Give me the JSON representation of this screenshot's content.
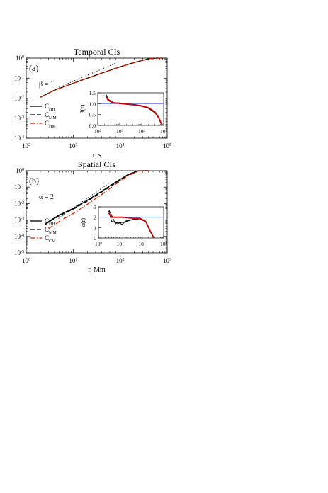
{
  "chart_data": [
    {
      "type": "line",
      "panel_label": "(a)",
      "title": "Temporal CIs",
      "xlabel": "τ, s",
      "ylabel": "",
      "x_scale": "log",
      "y_scale": "log",
      "xlim": [
        100,
        100000
      ],
      "ylim": [
        0.0001,
        1
      ],
      "x_ticks": [
        {
          "value": 100,
          "base": "10",
          "exp": "2"
        },
        {
          "value": 1000,
          "base": "10",
          "exp": "3"
        },
        {
          "value": 10000,
          "base": "10",
          "exp": "4"
        },
        {
          "value": 100000,
          "base": "10",
          "exp": "5"
        }
      ],
      "y_ticks": [
        {
          "value": 0.0001,
          "base": "10",
          "exp": "-4"
        },
        {
          "value": 0.001,
          "base": "10",
          "exp": "-3"
        },
        {
          "value": 0.01,
          "base": "10",
          "exp": "-2"
        },
        {
          "value": 0.1,
          "base": "10",
          "exp": "-1"
        },
        {
          "value": 1,
          "base": "10",
          "exp": "0"
        }
      ],
      "grid": false,
      "legend_position": "bottom-left",
      "reference_line": {
        "label": "β = 1",
        "slope": 1,
        "x": [
          400,
          8000
        ],
        "y": [
          0.028,
          0.56
        ]
      },
      "series": [
        {
          "name": "HH",
          "style": "solid",
          "color": "#000000",
          "x": [
            200,
            400,
            1000,
            2000,
            5000,
            10000,
            20000,
            40000,
            60000,
            80000
          ],
          "y": [
            0.011,
            0.025,
            0.055,
            0.1,
            0.21,
            0.37,
            0.6,
            0.92,
            1.0,
            1.0
          ]
        },
        {
          "name": "MM",
          "style": "dashed",
          "color": "#000000",
          "x": [
            200,
            400,
            1000,
            2000,
            5000,
            10000,
            20000,
            40000,
            60000,
            80000
          ],
          "y": [
            0.011,
            0.025,
            0.055,
            0.1,
            0.21,
            0.37,
            0.6,
            0.92,
            1.0,
            1.0
          ]
        },
        {
          "name": "HM",
          "style": "dashdot",
          "color": "#cc2200",
          "x": [
            200,
            400,
            1000,
            2000,
            5000,
            10000,
            20000,
            40000,
            60000,
            80000
          ],
          "y": [
            0.011,
            0.025,
            0.055,
            0.1,
            0.21,
            0.37,
            0.6,
            0.92,
            1.0,
            1.0
          ]
        }
      ],
      "inset": {
        "ylabel": "β(τ)",
        "x_scale": "log",
        "xlim": [
          100,
          100000
        ],
        "ylim": [
          0,
          1.5
        ],
        "x_ticks": [
          {
            "value": 100,
            "base": "10",
            "exp": "2"
          },
          {
            "value": 1000,
            "base": "10",
            "exp": "3"
          },
          {
            "value": 10000,
            "base": "10",
            "exp": "4"
          },
          {
            "value": 100000,
            "base": "10",
            "exp": "5"
          }
        ],
        "y_ticks": [
          "0.0",
          "0.5",
          "1.0",
          "1.5"
        ],
        "reference_value": 1.0,
        "reference_color": "#5577cc",
        "series": [
          {
            "name": "HH",
            "color": "#000000",
            "x": [
              250,
              300,
              500,
              1000,
              2000,
              5000,
              10000,
              20000,
              40000,
              60000,
              80000
            ],
            "y": [
              1.35,
              1.2,
              1.05,
              1.0,
              0.97,
              0.93,
              0.88,
              0.8,
              0.6,
              0.35,
              0.05
            ]
          },
          {
            "name": "MM",
            "color": "#000000",
            "x": [
              250,
              300,
              500,
              1000,
              2000,
              5000,
              10000,
              20000,
              40000,
              60000,
              80000
            ],
            "y": [
              1.4,
              1.18,
              1.06,
              1.0,
              0.98,
              0.94,
              0.88,
              0.79,
              0.58,
              0.33,
              0.05
            ]
          },
          {
            "name": "HM",
            "color": "#cc0000",
            "x": [
              250,
              300,
              500,
              1000,
              2000,
              5000,
              10000,
              20000,
              40000,
              60000,
              80000
            ],
            "y": [
              1.3,
              1.15,
              1.04,
              1.02,
              0.98,
              0.95,
              0.9,
              0.82,
              0.62,
              0.36,
              0.05
            ]
          }
        ]
      }
    },
    {
      "type": "line",
      "panel_label": "(b)",
      "title": "Spatial CIs",
      "xlabel": "r, Mm",
      "ylabel": "",
      "x_scale": "log",
      "y_scale": "log",
      "xlim": [
        1,
        1000
      ],
      "ylim": [
        1e-05,
        1
      ],
      "x_ticks": [
        {
          "value": 1,
          "base": "10",
          "exp": "0"
        },
        {
          "value": 10,
          "base": "10",
          "exp": "1"
        },
        {
          "value": 100,
          "base": "10",
          "exp": "2"
        },
        {
          "value": 1000,
          "base": "10",
          "exp": "3"
        }
      ],
      "y_ticks": [
        {
          "value": 1e-05,
          "base": "10",
          "exp": "-5"
        },
        {
          "value": 0.0001,
          "base": "10",
          "exp": "-4"
        },
        {
          "value": 0.001,
          "base": "10",
          "exp": "-3"
        },
        {
          "value": 0.01,
          "base": "10",
          "exp": "-2"
        },
        {
          "value": 0.1,
          "base": "10",
          "exp": "-1"
        },
        {
          "value": 1,
          "base": "10",
          "exp": "0"
        }
      ],
      "grid": false,
      "legend_position": "bottom-left",
      "reference_line": {
        "label": "α = 2",
        "slope": 2,
        "x": [
          4,
          60
        ],
        "y": [
          0.00085,
          0.19
        ]
      },
      "series": [
        {
          "name": "HH",
          "style": "solid",
          "color": "#000000",
          "x": [
            2.5,
            3,
            5,
            10,
            20,
            40,
            80,
            150,
            250,
            400
          ],
          "y": [
            0.00055,
            0.0008,
            0.002,
            0.005,
            0.016,
            0.055,
            0.2,
            0.6,
            1.0,
            1.0
          ]
        },
        {
          "name": "MM",
          "style": "dashed",
          "color": "#000000",
          "x": [
            2.5,
            3,
            5,
            10,
            20,
            40,
            80,
            150,
            250,
            400
          ],
          "y": [
            0.0005,
            0.00075,
            0.0018,
            0.0045,
            0.014,
            0.05,
            0.18,
            0.57,
            0.98,
            1.0
          ]
        },
        {
          "name": "CM",
          "style": "dashdot",
          "color": "#cc2200",
          "x": [
            3,
            5,
            10,
            20,
            40,
            80,
            150,
            250,
            400
          ],
          "y": [
            0.0003,
            0.0008,
            0.0025,
            0.009,
            0.035,
            0.15,
            0.52,
            0.95,
            1.0
          ]
        }
      ],
      "inset": {
        "ylabel": "α(r)",
        "x_scale": "log",
        "xlim": [
          1,
          1000
        ],
        "ylim": [
          0,
          3
        ],
        "x_ticks": [
          {
            "value": 1,
            "base": "10",
            "exp": "0"
          },
          {
            "value": 10,
            "base": "10",
            "exp": "1"
          },
          {
            "value": 100,
            "base": "10",
            "exp": "2"
          },
          {
            "value": 1000,
            "base": "10",
            "exp": "3"
          }
        ],
        "y_ticks": [
          "0",
          "1",
          "2",
          "3"
        ],
        "reference_value": 2.0,
        "reference_color": "#5577cc",
        "series": [
          {
            "name": "HH",
            "color": "#000000",
            "x": [
              3,
              4,
              6,
              8,
              12,
              20,
              40,
              80,
              150,
              250,
              350
            ],
            "y": [
              2.6,
              1.6,
              1.5,
              1.4,
              1.5,
              1.6,
              1.8,
              1.85,
              1.6,
              0.6,
              0.05
            ]
          },
          {
            "name": "MM",
            "color": "#000000",
            "x": [
              3,
              4,
              6,
              8,
              12,
              20,
              40,
              80,
              150,
              250,
              350
            ],
            "y": [
              2.7,
              2.2,
              1.35,
              1.55,
              1.3,
              1.7,
              1.75,
              1.85,
              1.55,
              0.55,
              0.05
            ]
          },
          {
            "name": "CM",
            "color": "#cc0000",
            "x": [
              3,
              4,
              6,
              8,
              12,
              20,
              40,
              80,
              150,
              250,
              350
            ],
            "y": [
              2.4,
              2.0,
              2.0,
              2.0,
              2.0,
              1.95,
              1.9,
              1.9,
              1.6,
              0.6,
              0.05
            ]
          }
        ]
      }
    }
  ]
}
